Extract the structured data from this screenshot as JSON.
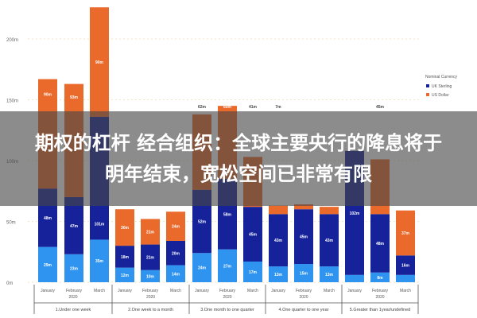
{
  "chart_data": {
    "type": "bar",
    "stacked": true,
    "categories": [
      "January",
      "February",
      "March",
      "January",
      "February",
      "March",
      "January",
      "February",
      "March",
      "January",
      "February",
      "March",
      "January",
      "February",
      "March"
    ],
    "year_labels": [
      "2020",
      "2020",
      "2020",
      "2020",
      "2020"
    ],
    "group_labels": [
      "1.Under one week",
      "2.One week to a month",
      "3.One month to one quarter",
      "4.One quarter to one year",
      "5.Greater than 1year/undefined"
    ],
    "series": [
      {
        "color": "#2f93f0",
        "values": [
          29,
          23,
          35,
          12,
          10,
          14,
          24,
          27,
          17,
          13,
          15,
          13,
          6,
          8,
          6
        ]
      },
      {
        "name": "UK Sterling",
        "color": "#15229a",
        "values": [
          48,
          47,
          101,
          18,
          21,
          20,
          52,
          58,
          45,
          43,
          45,
          43,
          102,
          48,
          16
        ]
      },
      {
        "name": "US Dollar",
        "color": "#ea6a2c",
        "values": [
          90,
          93,
          90,
          30,
          21,
          24,
          62,
          60,
          41,
          7,
          4,
          6,
          0,
          45,
          37
        ]
      }
    ],
    "yticks": [
      "0m",
      "50m",
      "100m",
      "150m",
      "200m"
    ],
    "ylim": [
      0,
      230
    ],
    "legend": {
      "title": "Nominal Currency",
      "placement": "right"
    },
    "grid": true
  },
  "banner": {
    "title": "期权的杠杆 经合组织：全球主要央行的降息将于明年结束，宽松空间已非常有限"
  }
}
